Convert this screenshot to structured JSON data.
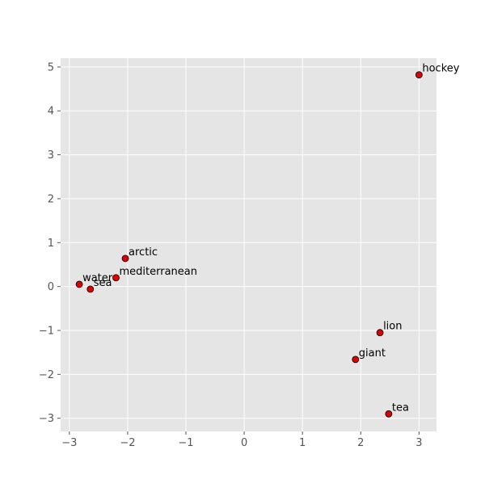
{
  "chart_data": {
    "type": "scatter",
    "title": "",
    "xlabel": "",
    "ylabel": "",
    "xlim": [
      -3.15,
      3.3
    ],
    "ylim": [
      -3.3,
      5.2
    ],
    "grid": true,
    "x_ticks": [
      -3,
      -2,
      -1,
      0,
      1,
      2,
      3
    ],
    "x_tick_labels": [
      "−3",
      "−2",
      "−1",
      "0",
      "1",
      "2",
      "3"
    ],
    "y_ticks": [
      -3,
      -2,
      -1,
      0,
      1,
      2,
      3,
      4,
      5
    ],
    "y_tick_labels": [
      "−3",
      "−2",
      "−1",
      "0",
      "1",
      "2",
      "3",
      "4",
      "5"
    ],
    "colors": {
      "plot_background": "#e5e5e5",
      "grid": "#ffffff",
      "marker_fill": "#dd0000",
      "marker_edge": "#000000",
      "tick_text": "#555555",
      "label_text": "#000000"
    },
    "points": [
      {
        "label": "hockey",
        "x": 3.0,
        "y": 4.82
      },
      {
        "label": "arctic",
        "x": -2.04,
        "y": 0.64
      },
      {
        "label": "mediterranean",
        "x": -2.2,
        "y": 0.2
      },
      {
        "label": "water",
        "x": -2.83,
        "y": 0.05
      },
      {
        "label": "sea",
        "x": -2.64,
        "y": -0.06
      },
      {
        "label": "lion",
        "x": 2.33,
        "y": -1.05
      },
      {
        "label": "giant",
        "x": 1.91,
        "y": -1.66
      },
      {
        "label": "tea",
        "x": 2.48,
        "y": -2.9
      }
    ]
  }
}
